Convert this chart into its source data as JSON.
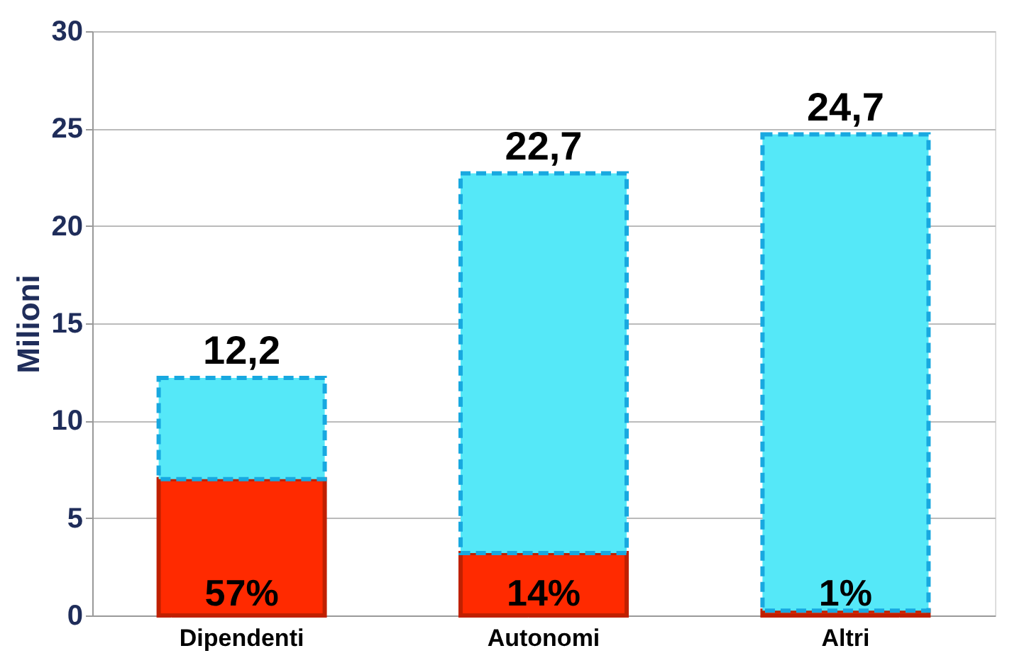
{
  "chart_data": {
    "type": "bar",
    "ylabel": "Milioni",
    "categories": [
      "Dipendenti",
      "Autonomi",
      "Altri"
    ],
    "stacked": true,
    "ylim": [
      0,
      30
    ],
    "yticks": [
      0,
      5,
      10,
      15,
      20,
      25,
      30
    ],
    "grid": "y",
    "legend": false,
    "annotations": [
      {
        "text": "57%",
        "x": "Dipendenti",
        "y": 0
      },
      {
        "text": "14%",
        "x": "Autonomi",
        "y": 0
      },
      {
        "text": "1%",
        "x": "Altri",
        "y": 0
      }
    ],
    "series": [
      {
        "color": "#ff2a00",
        "values": [
          7.0,
          3.2,
          0.25
        ]
      },
      {
        "color": "#55e8f8",
        "values": [
          5.2,
          19.5,
          24.45
        ]
      }
    ],
    "totals": [
      "12,2",
      "22,7",
      "24,7"
    ]
  }
}
